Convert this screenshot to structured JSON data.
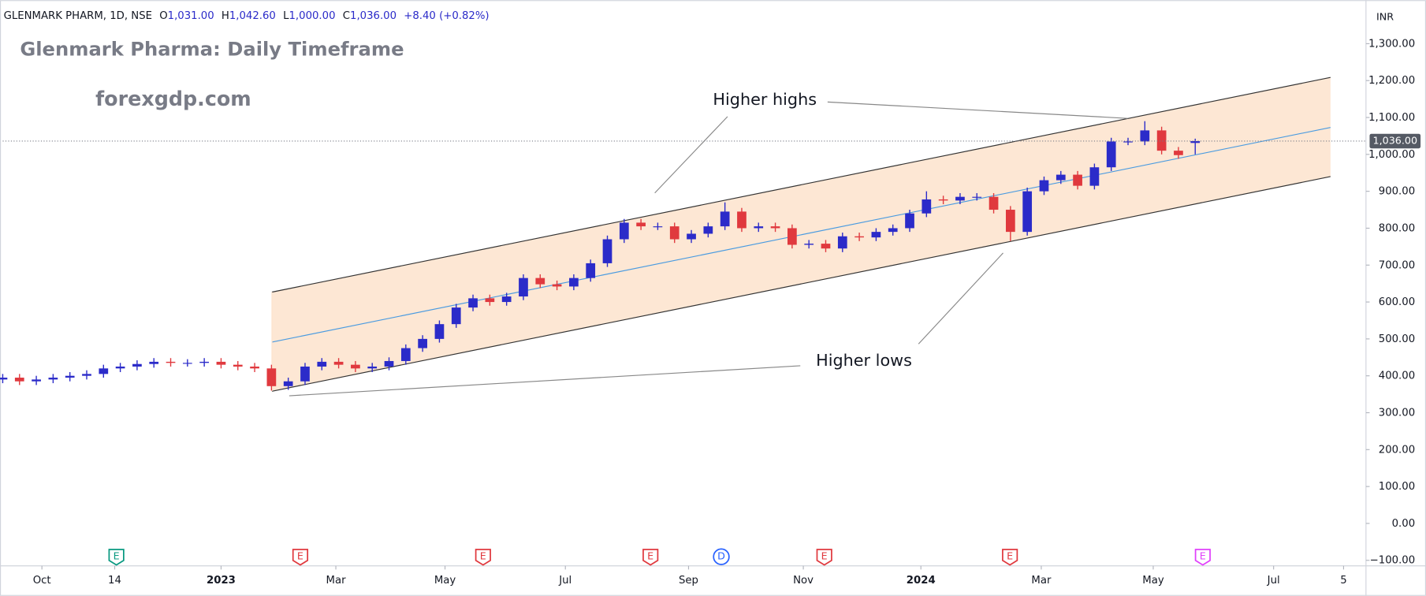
{
  "header": {
    "symbol": "GLENMARK PHARM, 1D, NSE",
    "ohlc": [
      {
        "key": "O",
        "value": "1,031.00"
      },
      {
        "key": "H",
        "value": "1,042.60"
      },
      {
        "key": "L",
        "value": "1,000.00"
      },
      {
        "key": "C",
        "value": "1,036.00"
      }
    ],
    "change": "+8.40 (+0.82%)"
  },
  "chart_data": {
    "type": "candlestick",
    "title": "Glenmark Pharma: Daily Timeframe",
    "subtitle": "forexgdp.com",
    "annotations": [
      "Higher highs",
      "Higher lows"
    ],
    "currency": "INR",
    "x": [
      0,
      6,
      12,
      18,
      24,
      30,
      36,
      42,
      48,
      54,
      60,
      66,
      72,
      78,
      84,
      90,
      96,
      102,
      108,
      114,
      120,
      126,
      132,
      138,
      144,
      150,
      156,
      162,
      168,
      174,
      180,
      186,
      192,
      198,
      204,
      210,
      216,
      222,
      228,
      234,
      240,
      246,
      252,
      258,
      264,
      270,
      276,
      282,
      288,
      294,
      300,
      306,
      312,
      318,
      324,
      330,
      336,
      342,
      348,
      354,
      360,
      366,
      372,
      378,
      384,
      390,
      396,
      402,
      408,
      414,
      420,
      426
    ],
    "open": [
      390,
      395,
      385,
      390,
      395,
      400,
      405,
      420,
      425,
      432,
      438,
      435,
      435,
      438,
      430,
      425,
      420,
      372,
      385,
      425,
      438,
      430,
      420,
      425,
      440,
      475,
      500,
      540,
      585,
      610,
      600,
      615,
      665,
      648,
      642,
      665,
      705,
      770,
      815,
      805,
      805,
      770,
      785,
      805,
      845,
      800,
      805,
      800,
      755,
      758,
      745,
      778,
      775,
      790,
      800,
      840,
      878,
      875,
      885,
      885,
      850,
      790,
      900,
      930,
      945,
      915,
      965,
      1035,
      1035,
      1065,
      1010,
      1031
    ],
    "high": [
      405,
      405,
      400,
      405,
      410,
      415,
      430,
      435,
      442,
      448,
      448,
      445,
      448,
      448,
      440,
      435,
      430,
      395,
      435,
      448,
      448,
      440,
      435,
      450,
      485,
      510,
      550,
      595,
      620,
      620,
      625,
      675,
      675,
      658,
      675,
      715,
      780,
      825,
      825,
      815,
      815,
      795,
      815,
      870,
      855,
      815,
      815,
      810,
      768,
      768,
      788,
      788,
      800,
      810,
      850,
      900,
      888,
      895,
      895,
      895,
      860,
      910,
      940,
      955,
      955,
      975,
      1045,
      1045,
      1090,
      1075,
      1020,
      1042.6
    ],
    "low": [
      380,
      375,
      375,
      380,
      385,
      390,
      395,
      410,
      415,
      422,
      425,
      425,
      425,
      420,
      415,
      410,
      360,
      362,
      375,
      415,
      420,
      410,
      410,
      415,
      430,
      465,
      490,
      530,
      575,
      590,
      590,
      605,
      638,
      632,
      632,
      655,
      695,
      760,
      795,
      795,
      760,
      760,
      775,
      795,
      790,
      790,
      790,
      745,
      745,
      735,
      735,
      765,
      765,
      780,
      790,
      830,
      865,
      865,
      875,
      840,
      765,
      780,
      890,
      920,
      905,
      905,
      955,
      1025,
      1025,
      1000,
      988,
      1000
    ],
    "close": [
      395,
      385,
      390,
      395,
      400,
      405,
      420,
      425,
      432,
      438,
      435,
      435,
      438,
      430,
      425,
      420,
      372,
      385,
      425,
      438,
      430,
      420,
      425,
      440,
      475,
      500,
      540,
      585,
      610,
      600,
      615,
      665,
      648,
      642,
      665,
      705,
      770,
      815,
      805,
      805,
      770,
      785,
      805,
      845,
      800,
      805,
      800,
      755,
      758,
      745,
      778,
      775,
      790,
      800,
      840,
      878,
      875,
      885,
      885,
      850,
      790,
      900,
      930,
      945,
      915,
      965,
      1035,
      1035,
      1065,
      1010,
      998,
      1036
    ],
    "up_color": "#2b2bc9",
    "down_color": "#e0393e",
    "xlim": [
      0,
      487
    ],
    "ylim": [
      -115,
      1418
    ],
    "xticks": [
      {
        "value": 14,
        "label": "Oct"
      },
      {
        "value": 40,
        "label": "14"
      },
      {
        "value": 78,
        "label": "2023"
      },
      {
        "value": 119,
        "label": "Mar"
      },
      {
        "value": 158,
        "label": "May"
      },
      {
        "value": 201,
        "label": "Jul"
      },
      {
        "value": 245,
        "label": "Sep"
      },
      {
        "value": 286,
        "label": "Nov"
      },
      {
        "value": 328,
        "label": "2024"
      },
      {
        "value": 371,
        "label": "Mar"
      },
      {
        "value": 411,
        "label": "May"
      },
      {
        "value": 454,
        "label": "Jul"
      },
      {
        "value": 479,
        "label": "5"
      }
    ],
    "yticks": [
      {
        "value": 1300,
        "label": "1,300.00"
      },
      {
        "value": 1200,
        "label": "1,200.00"
      },
      {
        "value": 1100,
        "label": "1,100.00"
      },
      {
        "value": 1000,
        "label": "1,000.00"
      },
      {
        "value": 900,
        "label": "900.00"
      },
      {
        "value": 800,
        "label": "800.00"
      },
      {
        "value": 700,
        "label": "700.00"
      },
      {
        "value": 600,
        "label": "600.00"
      },
      {
        "value": 500,
        "label": "500.00"
      },
      {
        "value": 400,
        "label": "400.00"
      },
      {
        "value": 300,
        "label": "300.00"
      },
      {
        "value": 200,
        "label": "200.00"
      },
      {
        "value": 100,
        "label": "100.00"
      },
      {
        "value": 0,
        "label": "0.00"
      },
      {
        "value": -100,
        "label": "−100.00"
      }
    ],
    "last_price": {
      "value": 1036,
      "label": "1,036.00"
    },
    "events": [
      {
        "x": 40.6,
        "label": "E",
        "color": "#089981"
      },
      {
        "x": 106.3,
        "label": "E",
        "color": "#e0393e"
      },
      {
        "x": 171.6,
        "label": "E",
        "color": "#e0393e"
      },
      {
        "x": 231.4,
        "label": "E",
        "color": "#e0393e"
      },
      {
        "x": 256.7,
        "label": "D",
        "color": "#2962ff"
      },
      {
        "x": 293.5,
        "label": "E",
        "color": "#e0393e"
      },
      {
        "x": 359.8,
        "label": "E",
        "color": "#e0393e"
      },
      {
        "x": 428.7,
        "label": "E",
        "color": "#e040fb"
      }
    ]
  }
}
